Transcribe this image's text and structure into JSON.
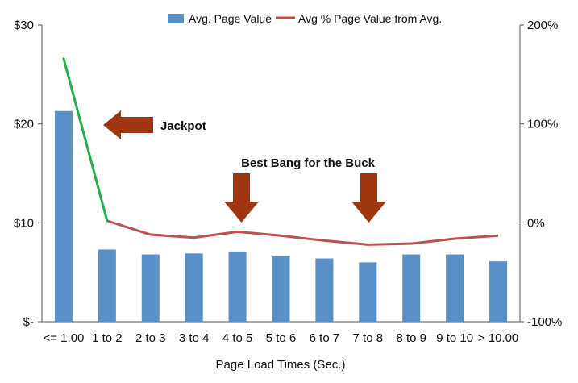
{
  "chart_data": {
    "type": "bar",
    "categories": [
      "<= 1.00",
      "1 to 2",
      "2 to 3",
      "3 to 4",
      "4 to 5",
      "5 to 6",
      "6 to 7",
      "7 to 8",
      "8 to 9",
      "9 to 10",
      "> 10.00"
    ],
    "series": [
      {
        "name": "Avg. Page Value",
        "type": "bar",
        "axis": "left",
        "color": "#5b8fc8",
        "values": [
          21.3,
          7.3,
          6.8,
          6.9,
          7.1,
          6.6,
          6.4,
          6.0,
          6.8,
          6.8,
          6.1
        ]
      },
      {
        "name": "Avg % Page Value from Avg.",
        "type": "line",
        "axis": "right",
        "color": "#c0504d",
        "highlight_color": "#1fb24a",
        "values": [
          166,
          2,
          -12,
          -15,
          -9,
          -13,
          -18,
          -22,
          -21,
          -16,
          -13
        ]
      }
    ],
    "left_axis": {
      "ylim": [
        0,
        30
      ],
      "ticks": [
        0,
        10,
        20,
        30
      ],
      "tick_labels": [
        "$-",
        "$10",
        "$20",
        "$30"
      ]
    },
    "right_axis": {
      "ylim": [
        -100,
        200
      ],
      "ticks": [
        -100,
        0,
        100,
        200
      ],
      "tick_labels": [
        "-100%",
        "0%",
        "100%",
        "200%"
      ]
    },
    "xlabel": "Page Load Times (Sec.)",
    "legend_position": "top",
    "grid": false,
    "annotations": [
      {
        "text": "Jackpot",
        "points_to": "<= 1.00",
        "arrow": "left"
      },
      {
        "text": "Best Bang for the Buck",
        "points_to": [
          "4 to 5",
          "7 to 8"
        ],
        "arrow": "down"
      }
    ],
    "arrow_color": "#a0360f"
  }
}
